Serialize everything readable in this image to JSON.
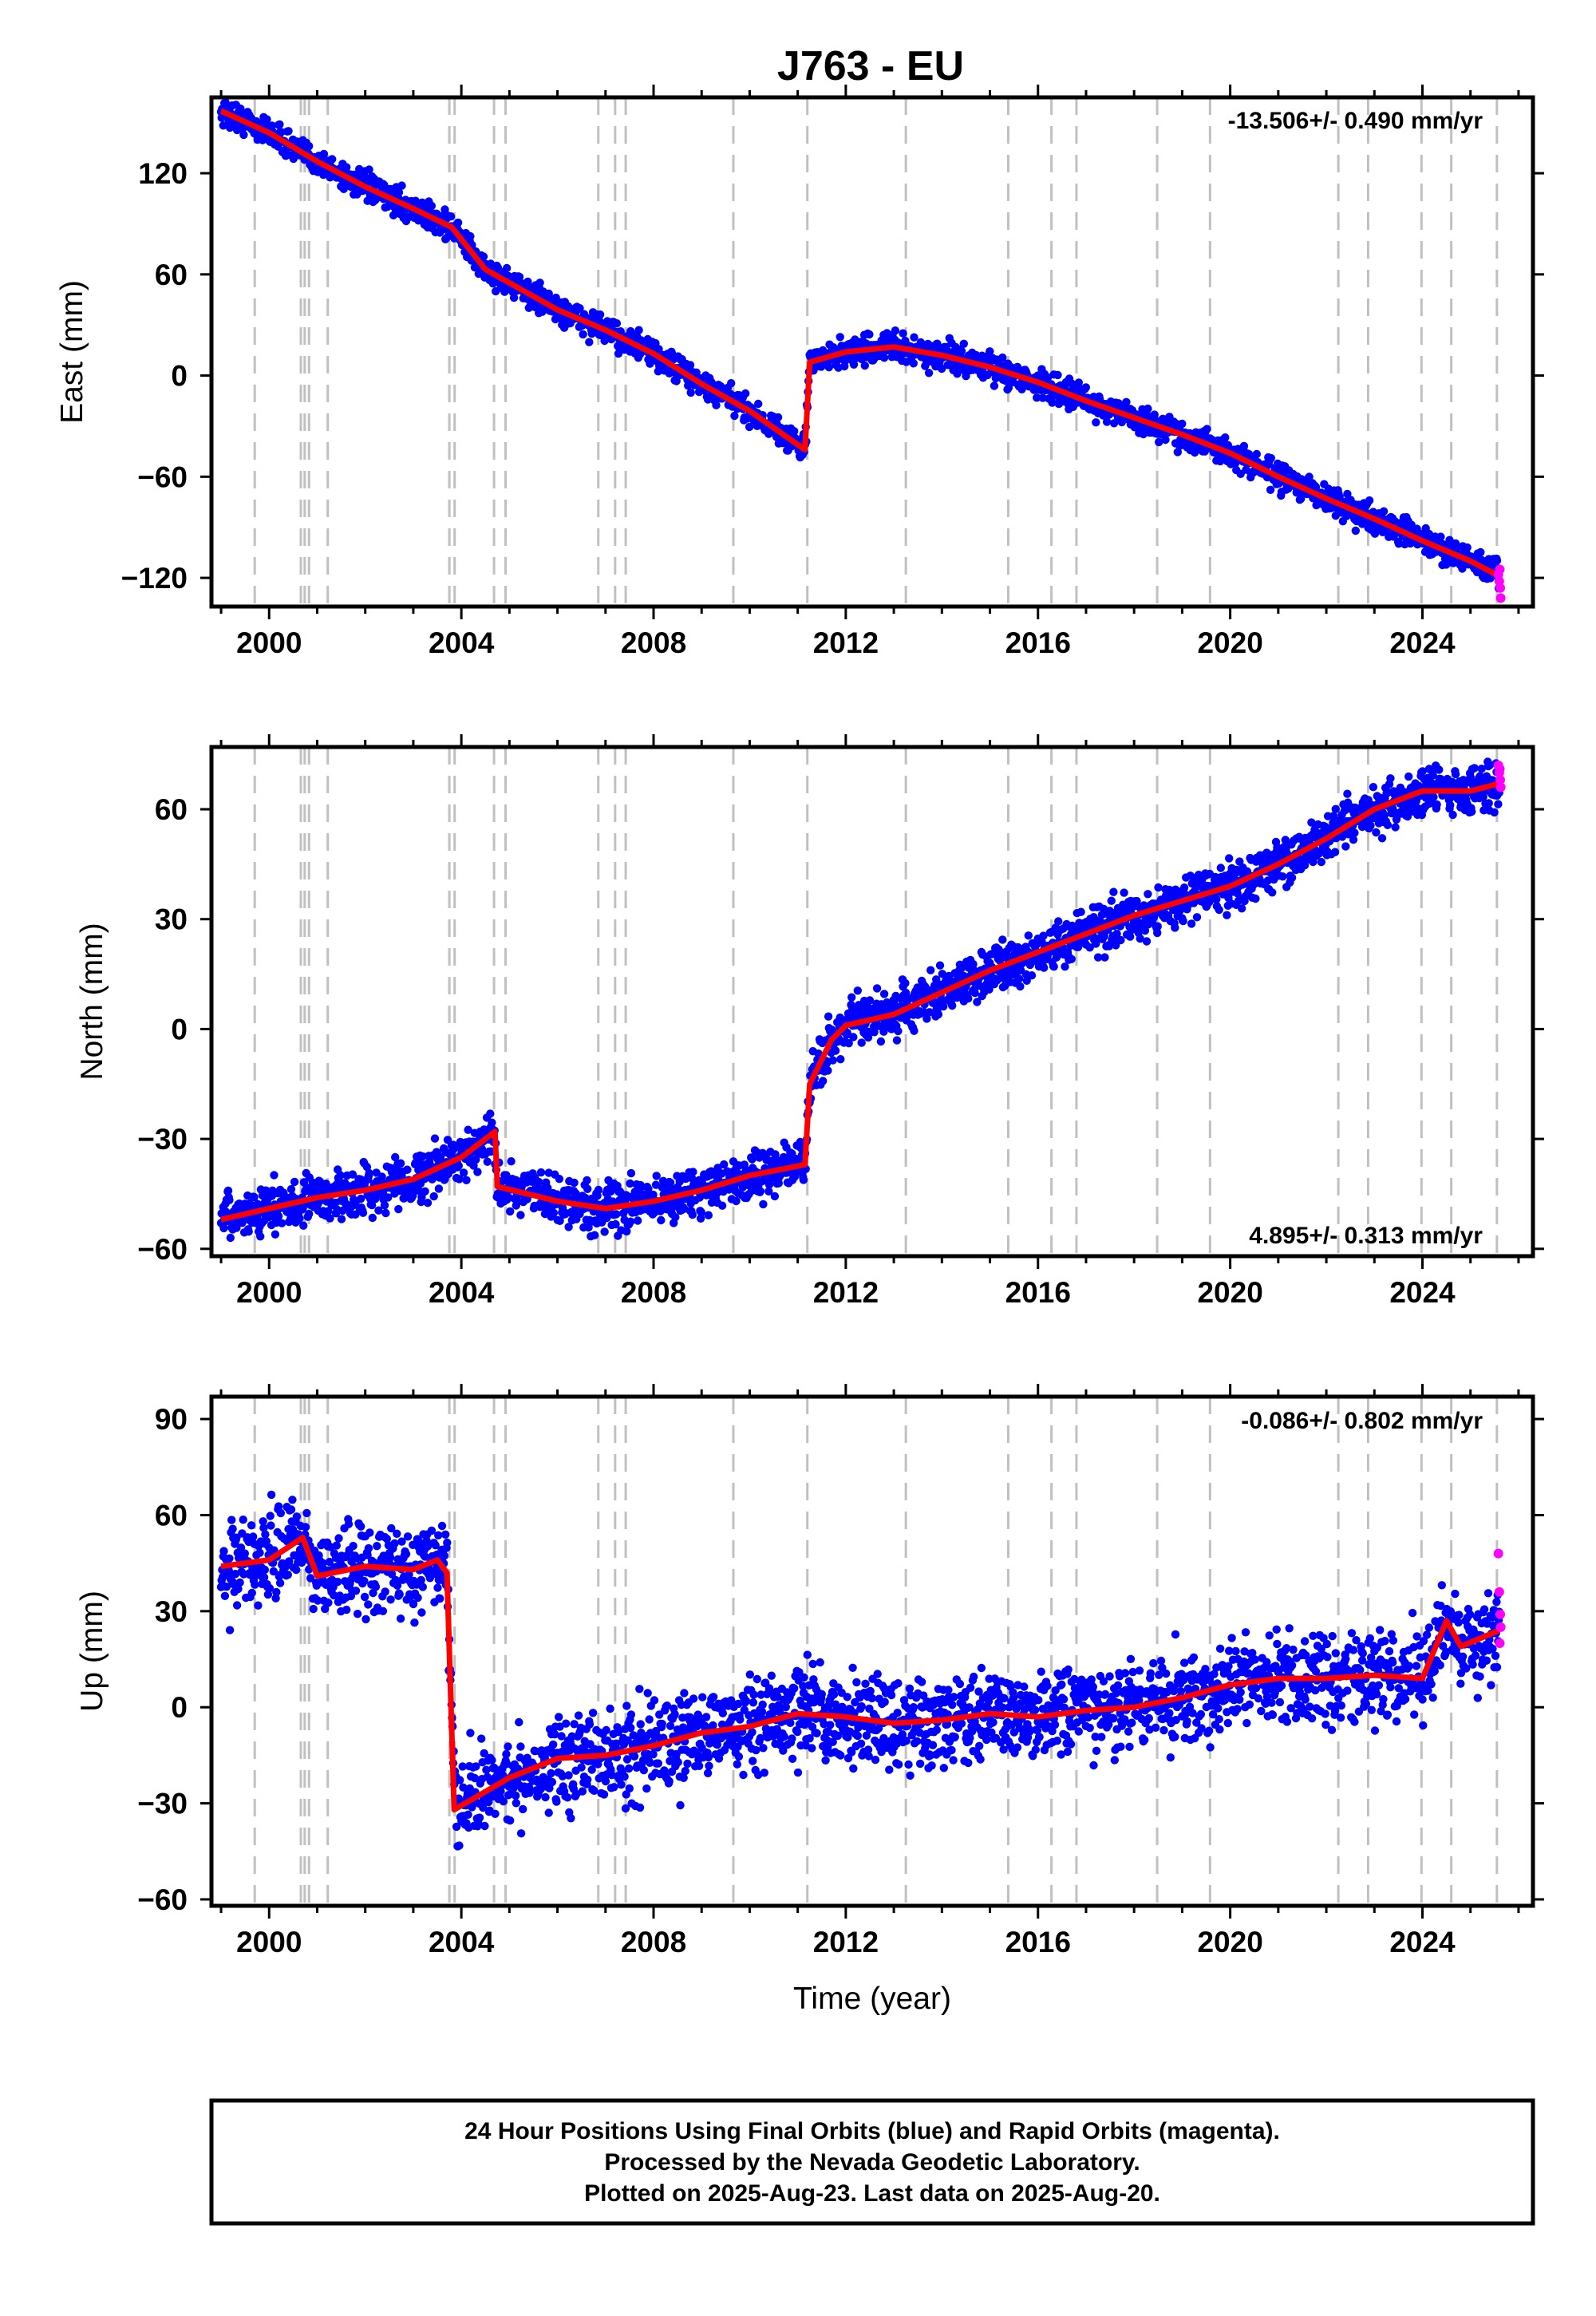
{
  "title": "J763 - EU",
  "xlabel": "Time (year)",
  "x_ticks": [
    "2000",
    "2004",
    "2008",
    "2012",
    "2016",
    "2020",
    "2024"
  ],
  "colors": {
    "final": "#0000ff",
    "rapid": "#ff00ff",
    "model": "#ff0000",
    "events": "#c0c0c0"
  },
  "event_years": [
    1999.7,
    2000.66,
    2000.74,
    2000.83,
    2001.22,
    2003.75,
    2003.86,
    2004.68,
    2004.92,
    2006.85,
    2007.2,
    2007.42,
    2009.66,
    2011.2,
    2013.25,
    2015.38,
    2016.28,
    2016.8,
    2018.48,
    2019.58,
    2022.25,
    2022.87,
    2023.98,
    2024.6,
    2025.55
  ],
  "chart_data": [
    {
      "type": "scatter",
      "ylabel": "East (mm)",
      "rate_label": "-13.506+/- 0.490 mm/yr",
      "rate_position": "top-right",
      "xlim": [
        1998.8,
        2026.3
      ],
      "ylim": [
        -137,
        165
      ],
      "y_ticks": [
        120,
        60,
        0,
        -60,
        -120
      ],
      "x": [
        1999.0,
        2000.0,
        2001.0,
        2002.0,
        2003.0,
        2003.8,
        2004.5,
        2005.0,
        2006.0,
        2007.0,
        2008.0,
        2009.0,
        2010.0,
        2011.15,
        2011.25,
        2012.0,
        2013.0,
        2014.0,
        2015.0,
        2016.0,
        2017.0,
        2018.0,
        2019.0,
        2020.0,
        2021.0,
        2022.0,
        2023.0,
        2024.0,
        2025.0,
        2025.6
      ],
      "model_y": [
        157,
        144,
        127,
        112,
        99,
        88,
        63,
        55,
        39,
        27,
        13,
        -5,
        -21,
        -44,
        8,
        14,
        17,
        12,
        5,
        -4,
        -15,
        -25,
        -35,
        -46,
        -60,
        -73,
        -85,
        -98,
        -110,
        -119
      ],
      "spread": 4,
      "rapid_points": [
        [
          2025.58,
          -118
        ],
        [
          2025.6,
          -122
        ],
        [
          2025.62,
          -126
        ],
        [
          2025.63,
          -132
        ],
        [
          2025.61,
          -115
        ]
      ]
    },
    {
      "type": "scatter",
      "ylabel": "North (mm)",
      "rate_label": "4.895+/- 0.313 mm/yr",
      "rate_position": "bottom-right",
      "xlim": [
        1998.8,
        2026.3
      ],
      "ylim": [
        -62,
        77
      ],
      "y_ticks": [
        60,
        30,
        0,
        -30,
        -60
      ],
      "x": [
        1999.0,
        2000.0,
        2001.0,
        2002.0,
        2003.0,
        2004.0,
        2004.7,
        2004.75,
        2006.0,
        2007.0,
        2008.0,
        2009.0,
        2010.0,
        2011.15,
        2011.25,
        2011.7,
        2012.0,
        2013.0,
        2014.0,
        2015.0,
        2016.0,
        2017.0,
        2018.0,
        2019.0,
        2020.0,
        2021.0,
        2022.0,
        2023.0,
        2024.0,
        2025.0,
        2025.6
      ],
      "model_y": [
        -52,
        -49,
        -46,
        -44,
        -41,
        -35,
        -28,
        -43,
        -47,
        -49,
        -47,
        -44,
        -40,
        -37,
        -15,
        -3,
        1,
        4,
        10,
        16,
        21,
        26,
        31,
        35,
        39,
        45,
        52,
        60,
        65,
        65,
        67
      ],
      "spread": 3.2,
      "rapid_points": [
        [
          2025.58,
          72
        ],
        [
          2025.6,
          70
        ],
        [
          2025.62,
          68
        ],
        [
          2025.63,
          66
        ],
        [
          2025.61,
          71
        ]
      ]
    },
    {
      "type": "scatter",
      "ylabel": "Up (mm)",
      "rate_label": "-0.086+/- 0.802 mm/yr",
      "rate_position": "top-right",
      "xlim": [
        1998.8,
        2026.3
      ],
      "ylim": [
        -62,
        97
      ],
      "y_ticks": [
        90,
        60,
        30,
        0,
        -30,
        -60
      ],
      "x": [
        1999.0,
        2000.0,
        2000.7,
        2001.0,
        2002.0,
        2003.0,
        2003.5,
        2003.7,
        2003.85,
        2005.0,
        2006.0,
        2007.0,
        2008.0,
        2009.0,
        2010.0,
        2011.0,
        2012.0,
        2013.0,
        2014.0,
        2015.0,
        2016.0,
        2017.0,
        2018.0,
        2019.0,
        2020.0,
        2021.0,
        2022.0,
        2023.0,
        2024.0,
        2024.5,
        2024.8,
        2025.6
      ],
      "model_y": [
        44,
        46,
        53,
        41,
        44,
        43,
        46,
        42,
        -32,
        -22,
        -16,
        -15,
        -12,
        -8,
        -6,
        -2,
        -3,
        -5,
        -4,
        -2,
        -3,
        -1,
        0,
        3,
        7,
        9,
        9,
        10,
        9,
        27,
        19,
        24
      ],
      "spread": 7,
      "rapid_points": [
        [
          2025.58,
          48
        ],
        [
          2025.6,
          36
        ],
        [
          2025.62,
          29
        ],
        [
          2025.63,
          25
        ],
        [
          2025.61,
          20
        ]
      ]
    }
  ],
  "footer": {
    "line1": "24 Hour Positions Using Final Orbits (blue) and Rapid Orbits (magenta).",
    "line2": "Processed by the Nevada Geodetic Laboratory.",
    "line3": "Plotted on 2025-Aug-23. Last data on 2025-Aug-20."
  }
}
